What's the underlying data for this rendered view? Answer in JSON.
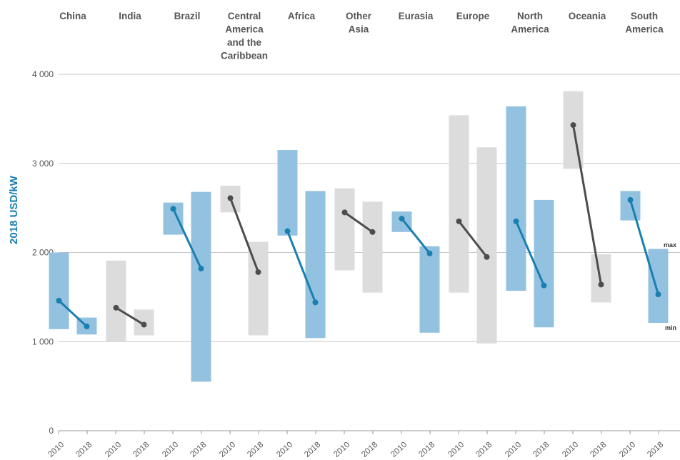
{
  "chart_data": {
    "type": "range-bar-slope",
    "ylabel": "2018 USD/kW",
    "ylim": [
      0,
      4000
    ],
    "yticks": [
      0,
      1000,
      2000,
      3000,
      4000
    ],
    "ytick_labels": [
      "0",
      "1 000",
      "2 000",
      "3 000",
      "4 000"
    ],
    "years": [
      "2010",
      "2018"
    ],
    "grid": true,
    "colors": {
      "blue": "#93c1e0",
      "blue_line": "#1a7fb0",
      "grey": "#dcdcdc",
      "grey_line": "#4d4d4d"
    },
    "annotations": {
      "max": "max",
      "min": "min"
    },
    "regions": [
      {
        "name": [
          "China"
        ],
        "color": "blue",
        "r2010": [
          1140,
          2000
        ],
        "r2018": [
          1080,
          1270
        ],
        "v2010": 1460,
        "v2018": 1170
      },
      {
        "name": [
          "India"
        ],
        "color": "grey",
        "r2010": [
          1000,
          1910
        ],
        "r2018": [
          1070,
          1360
        ],
        "v2010": 1380,
        "v2018": 1190
      },
      {
        "name": [
          "Brazil"
        ],
        "color": "blue",
        "r2010": [
          2200,
          2560
        ],
        "r2018": [
          550,
          2680
        ],
        "v2010": 2490,
        "v2018": 1820
      },
      {
        "name": [
          "Central",
          "America",
          "and the",
          "Caribbean"
        ],
        "color": "grey",
        "r2010": [
          2450,
          2750
        ],
        "r2018": [
          1070,
          2120
        ],
        "v2010": 2610,
        "v2018": 1780
      },
      {
        "name": [
          "Africa"
        ],
        "color": "blue",
        "r2010": [
          2190,
          3150
        ],
        "r2018": [
          1040,
          2690
        ],
        "v2010": 2240,
        "v2018": 1440
      },
      {
        "name": [
          "Other",
          "Asia"
        ],
        "color": "grey",
        "r2010": [
          1800,
          2720
        ],
        "r2018": [
          1550,
          2570
        ],
        "v2010": 2450,
        "v2018": 2230
      },
      {
        "name": [
          "Eurasia"
        ],
        "color": "blue",
        "r2010": [
          2230,
          2460
        ],
        "r2018": [
          1100,
          2070
        ],
        "v2010": 2380,
        "v2018": 1990
      },
      {
        "name": [
          "Europe"
        ],
        "color": "grey",
        "r2010": [
          1550,
          3540
        ],
        "r2018": [
          980,
          3180
        ],
        "v2010": 2350,
        "v2018": 1950
      },
      {
        "name": [
          "North",
          "America"
        ],
        "color": "blue",
        "r2010": [
          1570,
          3640
        ],
        "r2018": [
          1160,
          2590
        ],
        "v2010": 2350,
        "v2018": 1630
      },
      {
        "name": [
          "Oceania"
        ],
        "color": "grey",
        "r2010": [
          2940,
          3810
        ],
        "r2018": [
          1440,
          1980
        ],
        "v2010": 3430,
        "v2018": 1640
      },
      {
        "name": [
          "South",
          "America"
        ],
        "color": "blue",
        "r2010": [
          2360,
          2690
        ],
        "r2018": [
          1210,
          2040
        ],
        "v2010": 2590,
        "v2018": 1530
      }
    ]
  }
}
